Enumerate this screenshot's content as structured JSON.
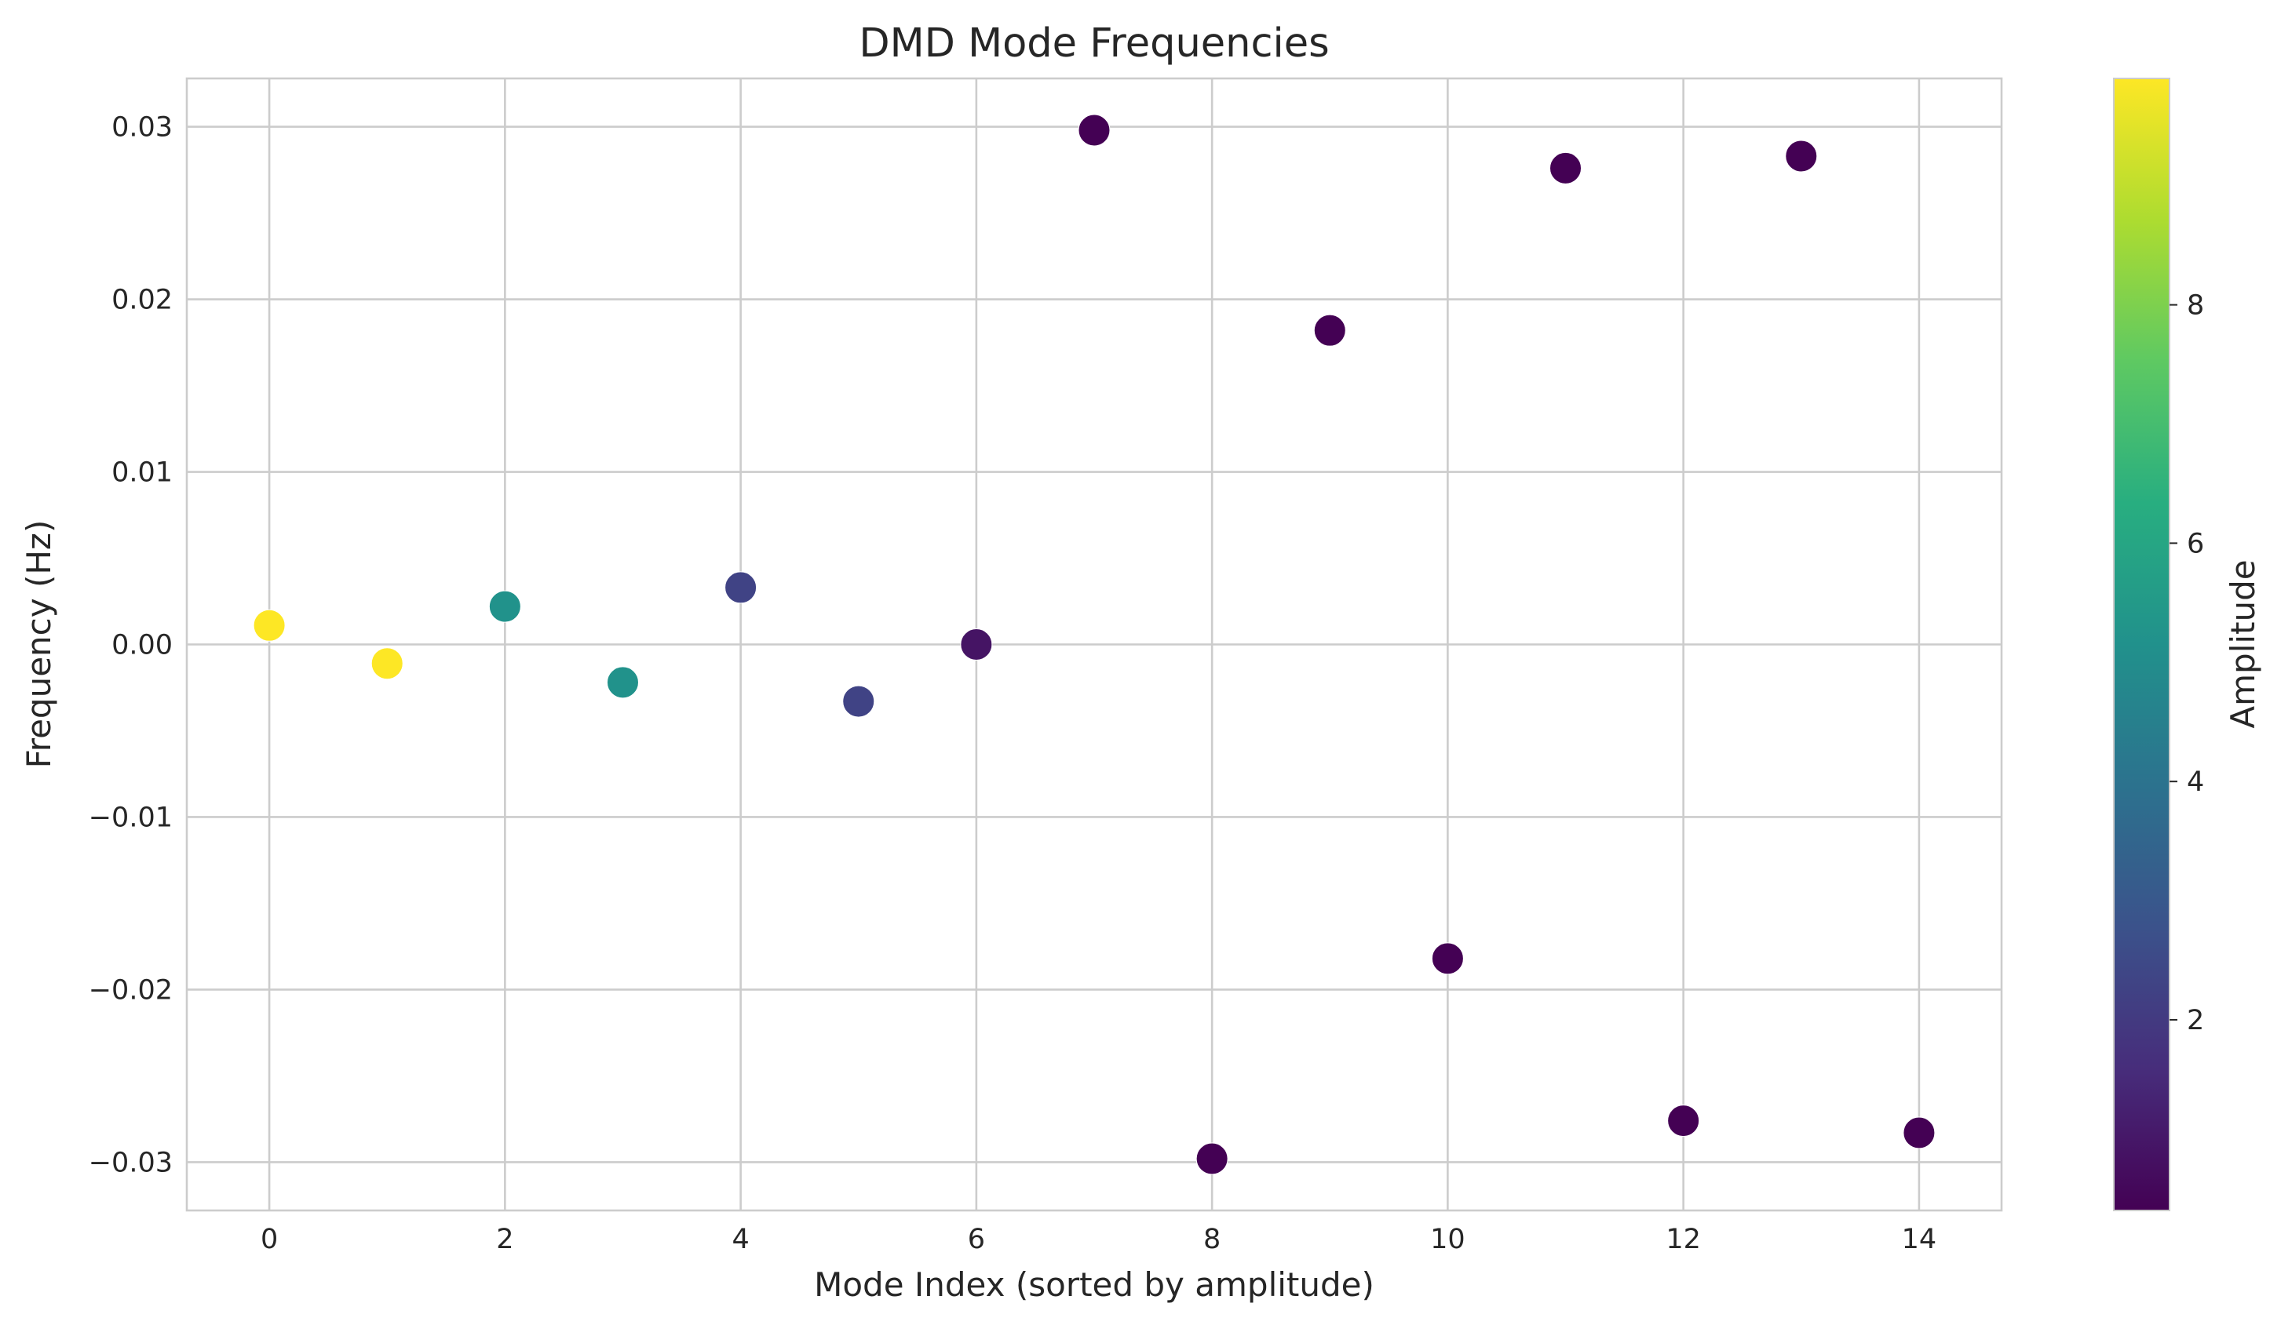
{
  "chart_data": {
    "type": "scatter",
    "title": "DMD Mode Frequencies",
    "xlabel": "Mode Index (sorted by amplitude)",
    "ylabel": "Frequency (Hz)",
    "xlim": [
      -0.7,
      14.7
    ],
    "ylim": [
      -0.0328,
      0.0328
    ],
    "x_ticks": [
      0,
      2,
      4,
      6,
      8,
      10,
      12,
      14
    ],
    "x_tick_labels": [
      "0",
      "2",
      "4",
      "6",
      "8",
      "10",
      "12",
      "14"
    ],
    "y_ticks": [
      0.03,
      0.02,
      0.01,
      0.0,
      -0.01,
      -0.02,
      -0.03
    ],
    "y_tick_labels": [
      "0.03",
      "0.02",
      "0.01",
      "0.00",
      "−0.01",
      "−0.02",
      "−0.03"
    ],
    "grid": true,
    "colormap": "viridis",
    "colorbar": {
      "label": "Amplitude",
      "min": 0.4,
      "max": 9.9,
      "ticks": [
        2,
        4,
        6,
        8
      ],
      "tick_labels": [
        "2",
        "4",
        "6",
        "8"
      ]
    },
    "points": [
      {
        "x": 0,
        "y": 0.0011,
        "amplitude": 9.9
      },
      {
        "x": 1,
        "y": -0.0011,
        "amplitude": 9.9
      },
      {
        "x": 2,
        "y": 0.0022,
        "amplitude": 5.2
      },
      {
        "x": 3,
        "y": -0.0022,
        "amplitude": 5.2
      },
      {
        "x": 4,
        "y": 0.0033,
        "amplitude": 2.3
      },
      {
        "x": 5,
        "y": -0.0033,
        "amplitude": 2.3
      },
      {
        "x": 6,
        "y": 0.0,
        "amplitude": 0.9
      },
      {
        "x": 7,
        "y": 0.0298,
        "amplitude": 0.4
      },
      {
        "x": 8,
        "y": -0.0298,
        "amplitude": 0.4
      },
      {
        "x": 9,
        "y": 0.0182,
        "amplitude": 0.4
      },
      {
        "x": 10,
        "y": -0.0182,
        "amplitude": 0.4
      },
      {
        "x": 11,
        "y": 0.0276,
        "amplitude": 0.4
      },
      {
        "x": 12,
        "y": -0.0276,
        "amplitude": 0.4
      },
      {
        "x": 13,
        "y": 0.0283,
        "amplitude": 0.4
      },
      {
        "x": 14,
        "y": -0.0283,
        "amplitude": 0.4
      }
    ]
  }
}
